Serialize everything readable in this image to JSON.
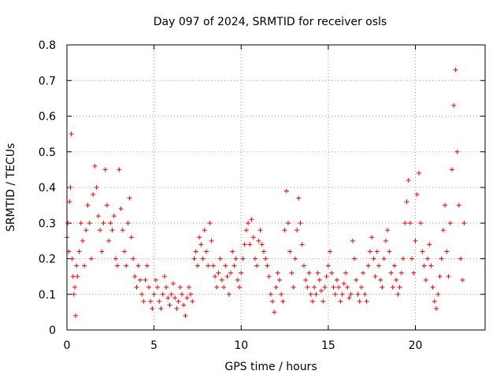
{
  "chart_data": {
    "type": "scatter",
    "title": "Day 097 of 2024, SRMTID for receiver osls",
    "xlabel": "GPS time / hours",
    "ylabel": "SRMTID / TECUs",
    "xlim": [
      0,
      24
    ],
    "ylim": [
      0,
      0.8
    ],
    "xticks": [
      0,
      5,
      10,
      15,
      20
    ],
    "xtick_labels": [
      "0",
      "5",
      "10",
      "15",
      "20"
    ],
    "yticks": [
      0,
      0.1,
      0.2,
      0.3,
      0.4,
      0.5,
      0.6,
      0.7,
      0.8
    ],
    "ytick_labels": [
      "0",
      "0.1",
      "0.2",
      "0.3",
      "0.4",
      "0.5",
      "0.6",
      "0.7",
      "0.8"
    ],
    "grid": true,
    "marker": "+",
    "color": "#ff0000",
    "series": [
      {
        "name": "SRMTID",
        "x": [
          0.0,
          0.05,
          0.1,
          0.15,
          0.2,
          0.25,
          0.3,
          0.35,
          0.4,
          0.45,
          0.5,
          0.55,
          0.6,
          0.7,
          0.8,
          0.9,
          1.0,
          1.1,
          1.2,
          1.3,
          1.4,
          1.5,
          1.6,
          1.7,
          1.8,
          1.9,
          2.0,
          2.1,
          2.2,
          2.3,
          2.4,
          2.5,
          2.6,
          2.7,
          2.8,
          2.9,
          3.0,
          3.1,
          3.2,
          3.3,
          3.4,
          3.5,
          3.6,
          3.7,
          3.8,
          3.9,
          4.0,
          4.1,
          4.2,
          4.3,
          4.4,
          4.5,
          4.6,
          4.7,
          4.8,
          4.9,
          5.0,
          5.1,
          5.2,
          5.3,
          5.4,
          5.5,
          5.6,
          5.7,
          5.8,
          5.9,
          6.0,
          6.1,
          6.2,
          6.3,
          6.4,
          6.5,
          6.6,
          6.7,
          6.8,
          6.9,
          7.0,
          7.1,
          7.2,
          7.3,
          7.4,
          7.5,
          7.6,
          7.7,
          7.8,
          7.9,
          8.0,
          8.1,
          8.2,
          8.3,
          8.4,
          8.5,
          8.6,
          8.7,
          8.8,
          8.9,
          9.0,
          9.1,
          9.2,
          9.3,
          9.4,
          9.5,
          9.6,
          9.7,
          9.8,
          9.9,
          10.0,
          10.1,
          10.2,
          10.3,
          10.4,
          10.5,
          10.6,
          10.7,
          10.8,
          10.9,
          11.0,
          11.1,
          11.2,
          11.3,
          11.4,
          11.5,
          11.6,
          11.7,
          11.8,
          11.9,
          12.0,
          12.1,
          12.2,
          12.3,
          12.4,
          12.5,
          12.6,
          12.7,
          12.8,
          12.9,
          13.0,
          13.1,
          13.2,
          13.3,
          13.4,
          13.5,
          13.6,
          13.7,
          13.8,
          13.9,
          14.0,
          14.1,
          14.2,
          14.3,
          14.4,
          14.5,
          14.6,
          14.7,
          14.8,
          14.9,
          15.0,
          15.1,
          15.2,
          15.3,
          15.4,
          15.5,
          15.6,
          15.7,
          15.8,
          15.9,
          16.0,
          16.1,
          16.2,
          16.3,
          16.4,
          16.5,
          16.6,
          16.7,
          16.8,
          16.9,
          17.0,
          17.1,
          17.2,
          17.3,
          17.4,
          17.5,
          17.6,
          17.7,
          17.8,
          17.9,
          18.0,
          18.1,
          18.2,
          18.3,
          18.4,
          18.5,
          18.6,
          18.7,
          18.8,
          18.9,
          19.0,
          19.1,
          19.2,
          19.3,
          19.4,
          19.5,
          19.6,
          19.7,
          19.8,
          19.9,
          20.0,
          20.1,
          20.2,
          20.3,
          20.4,
          20.5,
          20.6,
          20.7,
          20.8,
          20.9,
          21.0,
          21.1,
          21.2,
          21.3,
          21.4,
          21.5,
          21.6,
          21.7,
          21.8,
          21.9,
          22.0,
          22.1,
          22.2,
          22.3,
          22.4,
          22.5,
          22.6,
          22.7,
          22.8
        ],
        "y": [
          0.26,
          0.3,
          0.22,
          0.36,
          0.4,
          0.55,
          0.2,
          0.15,
          0.1,
          0.12,
          0.04,
          0.18,
          0.15,
          0.22,
          0.3,
          0.25,
          0.18,
          0.28,
          0.35,
          0.3,
          0.2,
          0.38,
          0.46,
          0.4,
          0.32,
          0.28,
          0.22,
          0.3,
          0.45,
          0.35,
          0.25,
          0.3,
          0.28,
          0.32,
          0.2,
          0.18,
          0.45,
          0.34,
          0.28,
          0.22,
          0.18,
          0.3,
          0.37,
          0.26,
          0.2,
          0.15,
          0.12,
          0.18,
          0.14,
          0.1,
          0.08,
          0.14,
          0.18,
          0.12,
          0.08,
          0.06,
          0.1,
          0.14,
          0.12,
          0.08,
          0.06,
          0.1,
          0.15,
          0.12,
          0.09,
          0.07,
          0.1,
          0.13,
          0.09,
          0.06,
          0.08,
          0.12,
          0.1,
          0.07,
          0.04,
          0.09,
          0.12,
          0.1,
          0.08,
          0.2,
          0.22,
          0.18,
          0.26,
          0.24,
          0.2,
          0.28,
          0.22,
          0.18,
          0.3,
          0.25,
          0.18,
          0.15,
          0.12,
          0.16,
          0.2,
          0.14,
          0.12,
          0.18,
          0.15,
          0.1,
          0.16,
          0.22,
          0.18,
          0.2,
          0.14,
          0.12,
          0.16,
          0.2,
          0.24,
          0.28,
          0.3,
          0.24,
          0.31,
          0.26,
          0.2,
          0.18,
          0.25,
          0.28,
          0.24,
          0.22,
          0.2,
          0.18,
          0.15,
          0.1,
          0.08,
          0.05,
          0.12,
          0.16,
          0.14,
          0.1,
          0.08,
          0.28,
          0.39,
          0.3,
          0.22,
          0.16,
          0.12,
          0.2,
          0.28,
          0.37,
          0.3,
          0.24,
          0.18,
          0.14,
          0.12,
          0.16,
          0.1,
          0.08,
          0.12,
          0.1,
          0.16,
          0.14,
          0.11,
          0.08,
          0.12,
          0.15,
          0.18,
          0.22,
          0.16,
          0.12,
          0.1,
          0.14,
          0.12,
          0.08,
          0.1,
          0.13,
          0.16,
          0.12,
          0.09,
          0.1,
          0.25,
          0.2,
          0.14,
          0.1,
          0.08,
          0.12,
          0.16,
          0.1,
          0.08,
          0.18,
          0.22,
          0.26,
          0.2,
          0.15,
          0.22,
          0.18,
          0.14,
          0.12,
          0.2,
          0.25,
          0.28,
          0.22,
          0.16,
          0.12,
          0.18,
          0.14,
          0.1,
          0.12,
          0.16,
          0.2,
          0.3,
          0.36,
          0.42,
          0.3,
          0.2,
          0.16,
          0.25,
          0.38,
          0.44,
          0.3,
          0.22,
          0.18,
          0.14,
          0.2,
          0.24,
          0.18,
          0.12,
          0.08,
          0.06,
          0.1,
          0.15,
          0.2,
          0.28,
          0.35,
          0.22,
          0.15,
          0.3,
          0.45,
          0.63,
          0.73,
          0.5,
          0.35,
          0.2,
          0.14,
          0.3
        ]
      }
    ]
  }
}
